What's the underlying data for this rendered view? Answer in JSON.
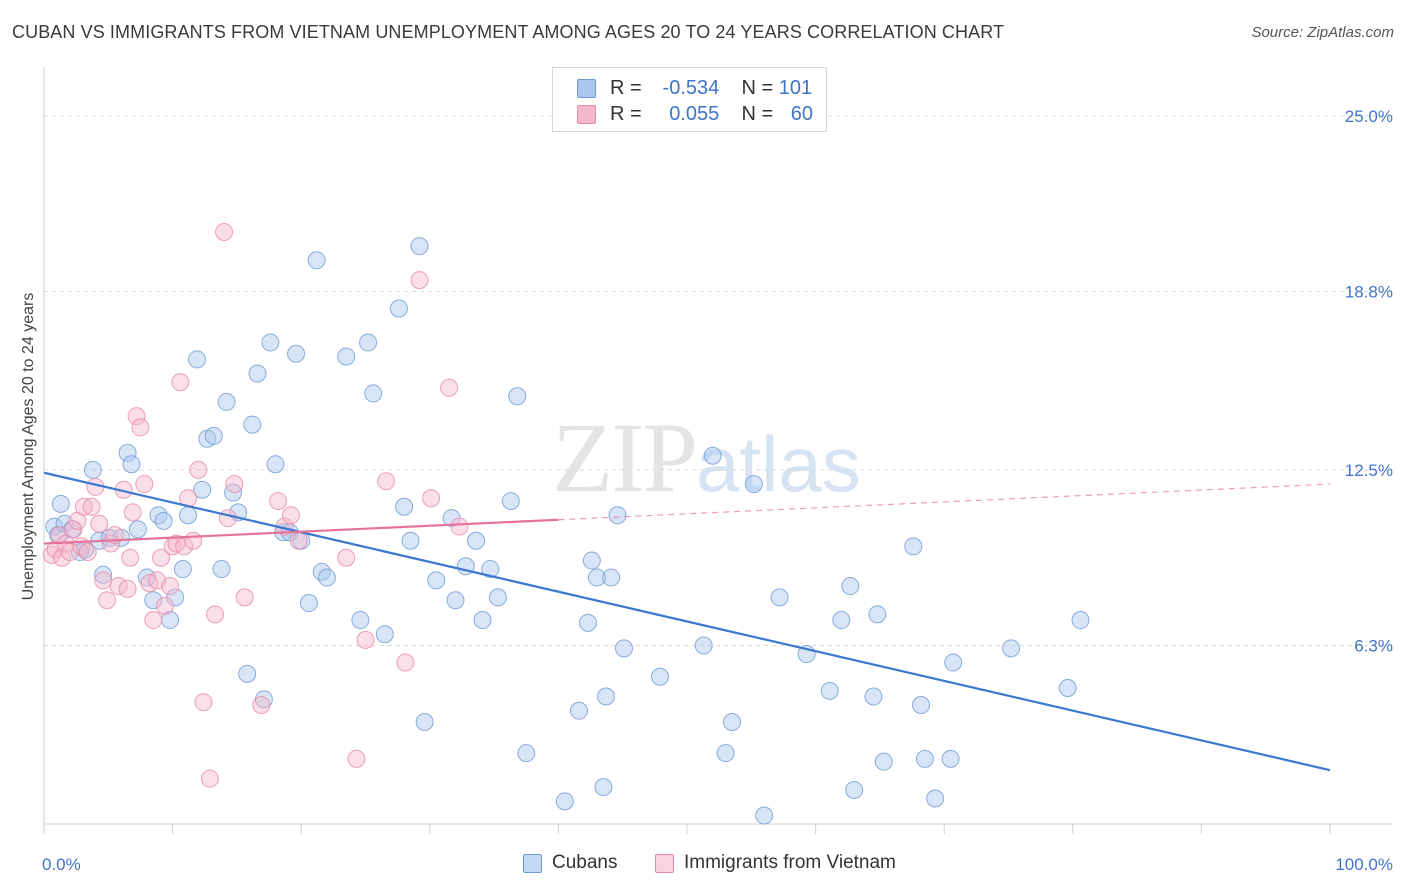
{
  "title": "CUBAN VS IMMIGRANTS FROM VIETNAM UNEMPLOYMENT AMONG AGES 20 TO 24 YEARS CORRELATION CHART",
  "source": "Source: ZipAtlas.com",
  "watermark": {
    "zip": "ZIP",
    "atlas": "atlas"
  },
  "stats": [
    {
      "r_label": "R =",
      "r_value": "-0.534",
      "n_label": "N =",
      "n_value": "101",
      "color": "#a9c6ee"
    },
    {
      "r_label": "R =",
      "r_value": "0.055",
      "n_label": "N =",
      "n_value": "60",
      "color": "#f4b8cb"
    }
  ],
  "legend": [
    {
      "label": "Cubans",
      "color": "#a9c6ee"
    },
    {
      "label": "Immigrants from Vietnam",
      "color": "#f4b8cb"
    }
  ],
  "chart_data": {
    "type": "scatter",
    "title": "CUBAN VS IMMIGRANTS FROM VIETNAM UNEMPLOYMENT AMONG AGES 20 TO 24 YEARS CORRELATION CHART",
    "xlabel": "",
    "ylabel": "Unemployment Among Ages 20 to 24 years",
    "xlim": [
      0,
      100
    ],
    "ylim": [
      0,
      26.3
    ],
    "x_tick_labels": [
      "0.0%",
      "100.0%"
    ],
    "y_ticks": [
      6.3,
      12.5,
      18.8,
      25.0
    ],
    "y_tick_labels": [
      "6.3%",
      "12.5%",
      "18.8%",
      "25.0%"
    ],
    "grid": "horizontal dashed",
    "legend_position": "bottom-center",
    "series": [
      {
        "name": "Cubans",
        "color": "#a9c6ee",
        "stroke": "#6f9ad6",
        "trend": {
          "x0": 0,
          "y0": 12.4,
          "x1": 100,
          "y1": 1.9,
          "dashed_from": null,
          "line_color": "#3b78d0"
        },
        "points": [
          [
            0.8,
            10.5
          ],
          [
            1.1,
            10.2
          ],
          [
            1.3,
            11.3
          ],
          [
            1.6,
            10.6
          ],
          [
            2.2,
            10.4
          ],
          [
            2.8,
            9.6
          ],
          [
            3.2,
            9.7
          ],
          [
            3.8,
            12.5
          ],
          [
            4.3,
            10.0
          ],
          [
            4.6,
            8.8
          ],
          [
            5.1,
            10.1
          ],
          [
            6.0,
            10.1
          ],
          [
            6.5,
            13.1
          ],
          [
            6.8,
            12.7
          ],
          [
            7.3,
            10.4
          ],
          [
            8.0,
            8.7
          ],
          [
            8.5,
            7.9
          ],
          [
            8.9,
            10.9
          ],
          [
            9.3,
            10.7
          ],
          [
            9.8,
            7.2
          ],
          [
            10.2,
            8.0
          ],
          [
            10.8,
            9.0
          ],
          [
            11.2,
            10.9
          ],
          [
            11.9,
            16.4
          ],
          [
            12.3,
            11.8
          ],
          [
            12.7,
            13.6
          ],
          [
            13.2,
            13.7
          ],
          [
            13.8,
            9.0
          ],
          [
            14.2,
            14.9
          ],
          [
            14.7,
            11.7
          ],
          [
            15.1,
            11.0
          ],
          [
            15.8,
            5.3
          ],
          [
            16.2,
            14.1
          ],
          [
            16.6,
            15.9
          ],
          [
            17.1,
            4.4
          ],
          [
            17.6,
            17.0
          ],
          [
            18.0,
            12.7
          ],
          [
            18.6,
            10.3
          ],
          [
            19.1,
            10.3
          ],
          [
            19.6,
            16.6
          ],
          [
            20.0,
            10.0
          ],
          [
            20.6,
            7.8
          ],
          [
            21.2,
            19.9
          ],
          [
            21.6,
            8.9
          ],
          [
            22.0,
            8.7
          ],
          [
            23.5,
            16.5
          ],
          [
            24.6,
            7.2
          ],
          [
            25.2,
            17.0
          ],
          [
            25.6,
            15.2
          ],
          [
            26.5,
            6.7
          ],
          [
            27.6,
            18.2
          ],
          [
            28.0,
            11.2
          ],
          [
            28.5,
            10.0
          ],
          [
            29.2,
            20.4
          ],
          [
            29.6,
            3.6
          ],
          [
            30.5,
            8.6
          ],
          [
            31.7,
            10.8
          ],
          [
            32.0,
            7.9
          ],
          [
            32.8,
            9.1
          ],
          [
            33.6,
            10.0
          ],
          [
            34.1,
            7.2
          ],
          [
            34.7,
            9.0
          ],
          [
            35.3,
            8.0
          ],
          [
            36.3,
            11.4
          ],
          [
            36.8,
            15.1
          ],
          [
            37.5,
            2.5
          ],
          [
            40.5,
            0.8
          ],
          [
            41.6,
            4.0
          ],
          [
            42.3,
            7.1
          ],
          [
            42.6,
            9.3
          ],
          [
            43.0,
            8.7
          ],
          [
            43.5,
            1.3
          ],
          [
            43.7,
            4.5
          ],
          [
            44.1,
            8.7
          ],
          [
            44.6,
            10.9
          ],
          [
            45.1,
            6.2
          ],
          [
            47.9,
            5.2
          ],
          [
            51.3,
            6.3
          ],
          [
            52.0,
            13.0
          ],
          [
            53.0,
            2.5
          ],
          [
            53.5,
            3.6
          ],
          [
            55.2,
            12.0
          ],
          [
            56.0,
            0.3
          ],
          [
            57.2,
            8.0
          ],
          [
            59.3,
            6.0
          ],
          [
            61.1,
            4.7
          ],
          [
            62.0,
            7.2
          ],
          [
            62.7,
            8.4
          ],
          [
            63.0,
            1.2
          ],
          [
            64.5,
            4.5
          ],
          [
            64.8,
            7.4
          ],
          [
            65.3,
            2.2
          ],
          [
            67.6,
            9.8
          ],
          [
            68.2,
            4.2
          ],
          [
            68.5,
            2.3
          ],
          [
            69.3,
            0.9
          ],
          [
            70.5,
            2.3
          ],
          [
            70.7,
            5.7
          ],
          [
            75.2,
            6.2
          ],
          [
            79.6,
            4.8
          ],
          [
            80.6,
            7.2
          ]
        ]
      },
      {
        "name": "Immigrants from Vietnam",
        "color": "#f4b8cb",
        "stroke": "#e88aa8",
        "trend": {
          "x0": 0,
          "y0": 9.9,
          "x1": 100,
          "y1": 12.0,
          "dashed_from": 40,
          "line_color": "#e57399"
        },
        "points": [
          [
            0.6,
            9.5
          ],
          [
            0.9,
            9.7
          ],
          [
            1.2,
            10.2
          ],
          [
            1.4,
            9.4
          ],
          [
            1.7,
            9.9
          ],
          [
            2.0,
            9.6
          ],
          [
            2.3,
            10.4
          ],
          [
            2.6,
            10.7
          ],
          [
            2.9,
            9.8
          ],
          [
            3.1,
            11.2
          ],
          [
            3.4,
            9.6
          ],
          [
            3.7,
            11.2
          ],
          [
            4.0,
            11.9
          ],
          [
            4.3,
            10.6
          ],
          [
            4.6,
            8.6
          ],
          [
            4.9,
            7.9
          ],
          [
            5.2,
            9.9
          ],
          [
            5.5,
            10.2
          ],
          [
            5.8,
            8.4
          ],
          [
            6.2,
            11.8
          ],
          [
            6.5,
            8.3
          ],
          [
            6.7,
            9.4
          ],
          [
            6.9,
            11.0
          ],
          [
            7.2,
            14.4
          ],
          [
            7.5,
            14.0
          ],
          [
            7.8,
            12.0
          ],
          [
            8.2,
            8.5
          ],
          [
            8.5,
            7.2
          ],
          [
            8.8,
            8.6
          ],
          [
            9.1,
            9.4
          ],
          [
            9.4,
            7.7
          ],
          [
            9.8,
            8.4
          ],
          [
            10.0,
            9.8
          ],
          [
            10.3,
            9.9
          ],
          [
            10.6,
            15.6
          ],
          [
            10.9,
            9.8
          ],
          [
            11.2,
            11.5
          ],
          [
            11.6,
            10.0
          ],
          [
            12.0,
            12.5
          ],
          [
            12.4,
            4.3
          ],
          [
            12.9,
            1.6
          ],
          [
            13.3,
            7.4
          ],
          [
            14.0,
            20.9
          ],
          [
            14.3,
            10.8
          ],
          [
            14.8,
            12.0
          ],
          [
            15.6,
            8.0
          ],
          [
            16.9,
            4.2
          ],
          [
            18.2,
            11.4
          ],
          [
            18.7,
            10.5
          ],
          [
            19.2,
            10.9
          ],
          [
            19.8,
            10.0
          ],
          [
            23.5,
            9.4
          ],
          [
            24.3,
            2.3
          ],
          [
            25.0,
            6.5
          ],
          [
            26.6,
            12.1
          ],
          [
            28.1,
            5.7
          ],
          [
            29.2,
            19.2
          ],
          [
            30.1,
            11.5
          ],
          [
            31.5,
            15.4
          ],
          [
            32.3,
            10.5
          ]
        ]
      }
    ]
  }
}
